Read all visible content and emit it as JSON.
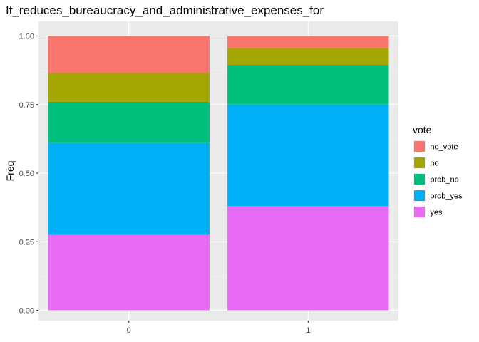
{
  "chart_data": {
    "type": "bar",
    "stacked": true,
    "title": "It_reduces_bureaucracy_and_administrative_expenses_for",
    "xlabel": "",
    "ylabel": "Freq",
    "categories": [
      "0",
      "1"
    ],
    "ylim": [
      0,
      1.0
    ],
    "yticks": [
      "0.00",
      "0.25",
      "0.50",
      "0.75",
      "1.00"
    ],
    "ytick_values": [
      0,
      0.25,
      0.5,
      0.75,
      1.0
    ],
    "grid": true,
    "legend": {
      "title": "vote",
      "position": "right"
    },
    "series": [
      {
        "name": "no_vote",
        "color": "#F8766D",
        "values": [
          0.135,
          0.045
        ]
      },
      {
        "name": "no",
        "color": "#A3A500",
        "values": [
          0.105,
          0.06
        ]
      },
      {
        "name": "prob_no",
        "color": "#00BF7D",
        "values": [
          0.15,
          0.145
        ]
      },
      {
        "name": "prob_yes",
        "color": "#00B0F6",
        "values": [
          0.335,
          0.37
        ]
      },
      {
        "name": "yes",
        "color": "#E76BF3",
        "values": [
          0.275,
          0.38
        ]
      }
    ],
    "stack_order_bottom_to_top": [
      "yes",
      "prob_yes",
      "prob_no",
      "no",
      "no_vote"
    ]
  }
}
